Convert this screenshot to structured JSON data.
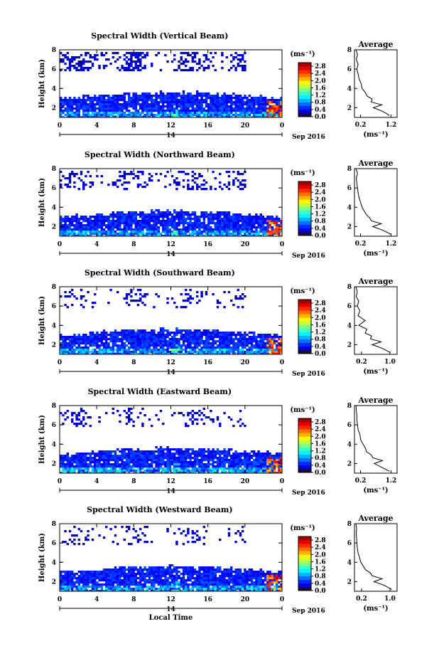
{
  "chart_data": [
    {
      "type": "heatmap",
      "title": "Spectral Width (Vertical Beam)",
      "ylabel": "Height (km)",
      "xticks": [
        "0",
        "4",
        "8",
        "12",
        "16",
        "20",
        "0"
      ],
      "yticks": [
        "2",
        "4",
        "6",
        "8"
      ],
      "xlim": [
        0,
        24
      ],
      "ylim": [
        1,
        8
      ],
      "date_day": "14",
      "date_label": "Sep 2016",
      "colorbar": {
        "unit": "(ms⁻¹)",
        "ticks": [
          "0.0",
          "0.4",
          "0.8",
          "1.2",
          "1.6",
          "2.0",
          "2.4",
          "2.8"
        ],
        "range": [
          0,
          3.0
        ]
      },
      "profile": {
        "title": "Average",
        "xticks": [
          "0.2",
          "1.2"
        ],
        "xlim": [
          0.0,
          1.4
        ],
        "yticks": [
          "2",
          "4",
          "6",
          "8"
        ],
        "xlabel": "(ms⁻¹)",
        "heights": [
          1.2,
          1.6,
          2.0,
          2.3,
          2.6,
          2.9,
          3.2,
          3.6,
          4.0,
          4.5,
          5.0,
          5.5,
          6.0,
          6.5,
          7.0,
          7.5,
          8.0
        ],
        "values": [
          1.15,
          0.95,
          0.62,
          0.9,
          0.55,
          0.58,
          0.42,
          0.35,
          0.25,
          0.22,
          0.15,
          0.12,
          0.08,
          0.12,
          0.06,
          0.1,
          0.05
        ]
      }
    },
    {
      "type": "heatmap",
      "title": "Spectral Width (Northward Beam)",
      "ylabel": "Height (km)",
      "xticks": [
        "0",
        "4",
        "8",
        "12",
        "16",
        "20",
        "0"
      ],
      "yticks": [
        "2",
        "4",
        "6",
        "8"
      ],
      "xlim": [
        0,
        24
      ],
      "ylim": [
        1,
        8
      ],
      "date_day": "14",
      "date_label": "Sep 2016",
      "colorbar": {
        "unit": "(ms⁻¹)",
        "ticks": [
          "0.0",
          "0.4",
          "0.8",
          "1.2",
          "1.6",
          "2.0",
          "2.4",
          "2.8"
        ],
        "range": [
          0,
          3.0
        ]
      },
      "profile": {
        "title": "Average",
        "xticks": [
          "0.2",
          "1.2"
        ],
        "xlim": [
          0.0,
          1.4
        ],
        "yticks": [
          "2",
          "4",
          "6",
          "8"
        ],
        "xlabel": "(ms⁻¹)",
        "heights": [
          1.2,
          1.6,
          2.0,
          2.3,
          2.6,
          2.9,
          3.2,
          3.6,
          4.0,
          4.5,
          5.0,
          5.5,
          6.0,
          6.5,
          7.0,
          7.5,
          8.0
        ],
        "values": [
          1.2,
          0.95,
          0.6,
          0.88,
          0.55,
          0.5,
          0.4,
          0.32,
          0.25,
          0.2,
          0.15,
          0.12,
          0.1,
          0.08,
          0.06,
          0.1,
          0.05
        ]
      }
    },
    {
      "type": "heatmap",
      "title": "Spectral Width (Southward Beam)",
      "ylabel": "Height (km)",
      "xticks": [
        "0",
        "4",
        "8",
        "12",
        "16",
        "20",
        "0"
      ],
      "yticks": [
        "2",
        "4",
        "6",
        "8"
      ],
      "xlim": [
        0,
        24
      ],
      "ylim": [
        1,
        8
      ],
      "date_day": "14",
      "date_label": "Sep 2016",
      "colorbar": {
        "unit": "(ms⁻¹)",
        "ticks": [
          "0.0",
          "0.4",
          "0.8",
          "1.2",
          "1.6",
          "2.0",
          "2.4",
          "2.8"
        ],
        "range": [
          0,
          3.0
        ]
      },
      "profile": {
        "title": "Average",
        "xticks": [
          "0.2",
          "1.0"
        ],
        "xlim": [
          0.0,
          1.2
        ],
        "yticks": [
          "2",
          "4",
          "6",
          "8"
        ],
        "xlabel": "(ms⁻¹)",
        "heights": [
          1.2,
          1.6,
          2.0,
          2.3,
          2.6,
          2.9,
          3.2,
          3.6,
          4.0,
          4.5,
          5.0,
          5.5,
          6.0,
          6.5,
          7.0,
          7.5,
          8.0
        ],
        "values": [
          1.0,
          0.8,
          0.5,
          0.75,
          0.45,
          0.48,
          0.3,
          0.35,
          0.12,
          0.3,
          0.1,
          0.15,
          0.08,
          0.12,
          0.05,
          0.08,
          0.04
        ]
      }
    },
    {
      "type": "heatmap",
      "title": "Spectral Width (Eastward Beam)",
      "ylabel": "Height (km)",
      "xticks": [
        "0",
        "4",
        "8",
        "12",
        "16",
        "20",
        "0"
      ],
      "yticks": [
        "2",
        "4",
        "6",
        "8"
      ],
      "xlim": [
        0,
        24
      ],
      "ylim": [
        1,
        8
      ],
      "date_day": "14",
      "date_label": "Sep 2016",
      "colorbar": {
        "unit": "(ms⁻¹)",
        "ticks": [
          "0.0",
          "0.4",
          "0.8",
          "1.2",
          "1.6",
          "2.0",
          "2.4",
          "2.8"
        ],
        "range": [
          0,
          3.0
        ]
      },
      "profile": {
        "title": "Average",
        "xticks": [
          "0.2",
          "1.2"
        ],
        "xlim": [
          0.0,
          1.4
        ],
        "yticks": [
          "2",
          "4",
          "6",
          "8"
        ],
        "xlabel": "(ms⁻¹)",
        "heights": [
          1.2,
          1.6,
          2.0,
          2.3,
          2.6,
          2.9,
          3.2,
          3.6,
          4.0,
          4.5,
          5.0,
          5.5,
          6.0,
          6.5,
          7.0,
          7.5,
          8.0
        ],
        "values": [
          1.15,
          0.9,
          0.65,
          0.92,
          0.6,
          0.55,
          0.4,
          0.36,
          0.28,
          0.2,
          0.18,
          0.12,
          0.1,
          0.08,
          0.08,
          0.06,
          0.05
        ]
      }
    },
    {
      "type": "heatmap",
      "title": "Spectral Width (Westward Beam)",
      "ylabel": "Height (km)",
      "xticks": [
        "0",
        "4",
        "8",
        "12",
        "16",
        "20",
        "0"
      ],
      "yticks": [
        "2",
        "4",
        "6",
        "8"
      ],
      "xlim": [
        0,
        24
      ],
      "ylim": [
        1,
        8
      ],
      "date_day": "14",
      "date_label": "Sep 2016",
      "xlabel": "Local Time",
      "colorbar": {
        "unit": "(ms⁻¹)",
        "ticks": [
          "0.0",
          "0.4",
          "0.8",
          "1.2",
          "1.6",
          "2.0",
          "2.4",
          "2.8"
        ],
        "range": [
          0,
          3.0
        ]
      },
      "profile": {
        "title": "Average",
        "xticks": [
          "0.2",
          "1.0"
        ],
        "xlim": [
          0.0,
          1.2
        ],
        "yticks": [
          "2",
          "4",
          "6",
          "8"
        ],
        "xlabel": "(ms⁻¹)",
        "heights": [
          1.2,
          1.6,
          2.0,
          2.3,
          2.6,
          2.9,
          3.2,
          3.6,
          4.0,
          4.5,
          5.0,
          5.5,
          6.0,
          6.5,
          7.0,
          7.5,
          8.0
        ],
        "values": [
          1.05,
          0.85,
          0.55,
          0.78,
          0.5,
          0.45,
          0.32,
          0.25,
          0.18,
          0.14,
          0.1,
          0.08,
          0.07,
          0.06,
          0.05,
          0.06,
          0.04
        ]
      }
    }
  ]
}
